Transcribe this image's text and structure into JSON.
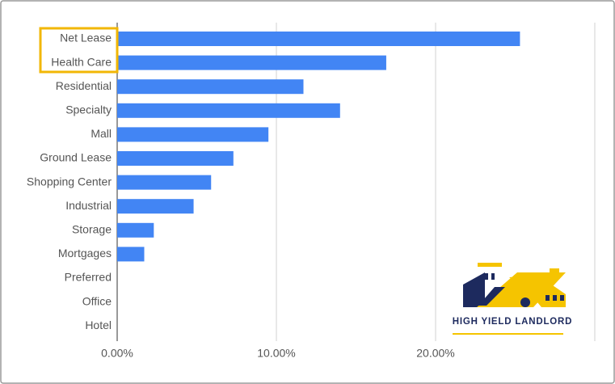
{
  "chart_data": {
    "type": "bar",
    "orientation": "horizontal",
    "categories": [
      "Net Lease",
      "Health Care",
      "Residential",
      "Specialty",
      "Mall",
      "Ground Lease",
      "Shopping Center",
      "Industrial",
      "Storage",
      "Mortgages",
      "Preferred",
      "Office",
      "Hotel"
    ],
    "values": [
      25.3,
      16.9,
      11.7,
      14.0,
      9.5,
      7.3,
      5.9,
      4.8,
      2.3,
      1.7,
      0,
      0,
      0
    ],
    "color": "#4285f4",
    "xlim": [
      0,
      30
    ],
    "xticks": [
      {
        "value": 0,
        "label": "0.00%"
      },
      {
        "value": 10,
        "label": "10.00%"
      },
      {
        "value": 20,
        "label": "20.00%"
      }
    ],
    "grid": true,
    "highlight_color": "#f2b705"
  },
  "logo": "HIGH YIELD LANDLORD"
}
